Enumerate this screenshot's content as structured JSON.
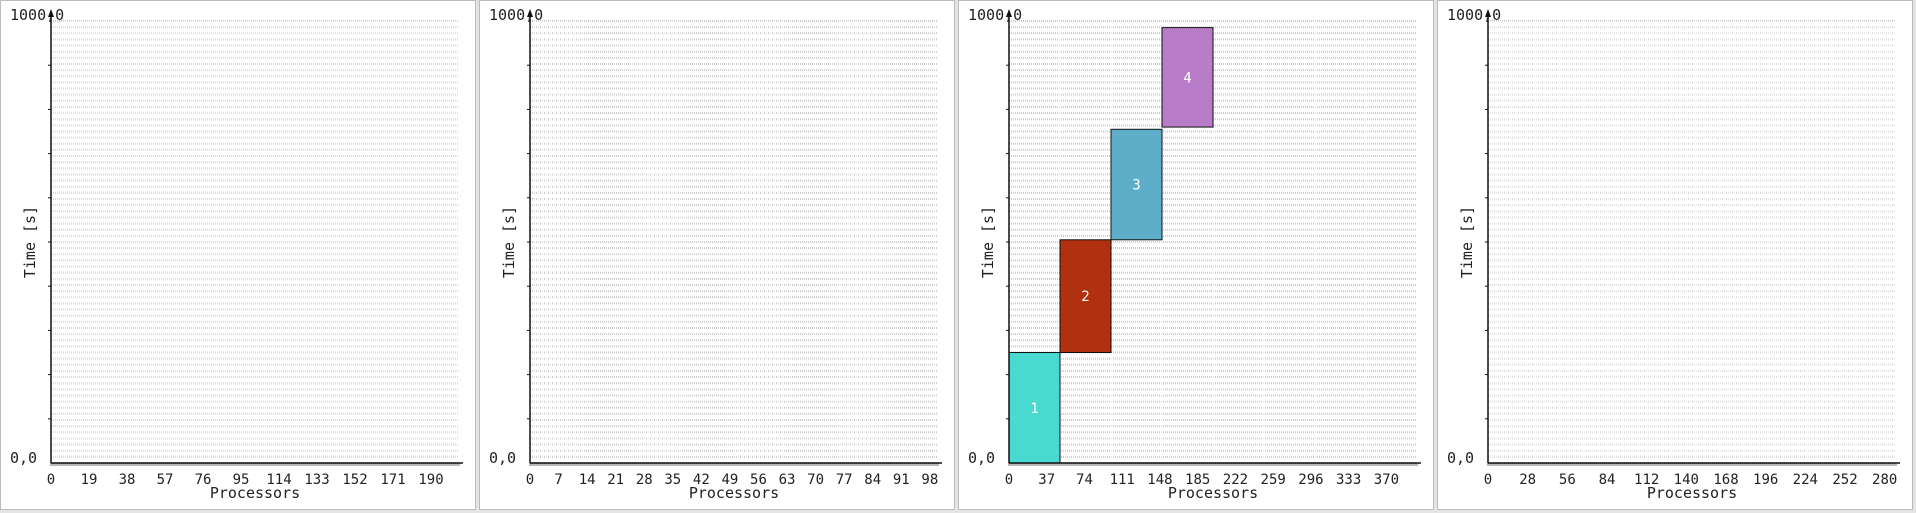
{
  "colors": {
    "grid": "#cccccc",
    "axis": "#111111"
  },
  "chart_data": [
    {
      "type": "bar",
      "ylabel": "Time [s]",
      "xlabel": "Processors",
      "y_top_label": "1000,0",
      "y_bottom_label": "0,0",
      "ylim": [
        0,
        1000
      ],
      "xlim": [
        0,
        204
      ],
      "x_ticks": [
        "0",
        "19",
        "38",
        "57",
        "76",
        "95",
        "114",
        "133",
        "152",
        "171",
        "190"
      ],
      "tick_step": 19,
      "grid_rows": 72,
      "grid_cols": 204,
      "jobs": []
    },
    {
      "type": "bar",
      "ylabel": "Time [s]",
      "xlabel": "Processors",
      "y_top_label": "1000,0",
      "y_bottom_label": "0,0",
      "ylim": [
        0,
        1000
      ],
      "xlim": [
        0,
        100
      ],
      "x_ticks": [
        "0",
        "7",
        "14",
        "21",
        "28",
        "35",
        "42",
        "49",
        "56",
        "63",
        "70",
        "77",
        "84",
        "91",
        "98"
      ],
      "tick_step": 7,
      "grid_rows": 72,
      "grid_cols": 100,
      "jobs": []
    },
    {
      "type": "bar",
      "ylabel": "Time [s]",
      "xlabel": "Processors",
      "y_top_label": "1000,0",
      "y_bottom_label": "0,0",
      "ylim": [
        0,
        1000
      ],
      "xlim": [
        0,
        400
      ],
      "x_ticks": [
        "0",
        "37",
        "74",
        "111",
        "148",
        "185",
        "222",
        "259",
        "296",
        "333",
        "370"
      ],
      "tick_step": 37,
      "grid_rows": 72,
      "grid_cols": 8,
      "jobs": [
        {
          "id": "1",
          "x_start": 0,
          "x_end": 50,
          "y_start": 0,
          "y_end": 250,
          "color": "#48d9d0"
        },
        {
          "id": "2",
          "x_start": 50,
          "x_end": 100,
          "y_start": 250,
          "y_end": 505,
          "color": "#b0300f"
        },
        {
          "id": "3",
          "x_start": 100,
          "x_end": 150,
          "y_start": 505,
          "y_end": 755,
          "color": "#5eaec9"
        },
        {
          "id": "4",
          "x_start": 150,
          "x_end": 200,
          "y_start": 760,
          "y_end": 985,
          "color": "#b87cc8"
        }
      ]
    },
    {
      "type": "bar",
      "ylabel": "Time [s]",
      "xlabel": "Processors",
      "y_top_label": "1000,0",
      "y_bottom_label": "0,0",
      "ylim": [
        0,
        1000
      ],
      "xlim": [
        0,
        288
      ],
      "x_ticks": [
        "0",
        "28",
        "56",
        "84",
        "112",
        "140",
        "168",
        "196",
        "224",
        "252",
        "280"
      ],
      "tick_step": 28,
      "grid_rows": 72,
      "grid_cols": 288,
      "jobs": []
    }
  ]
}
